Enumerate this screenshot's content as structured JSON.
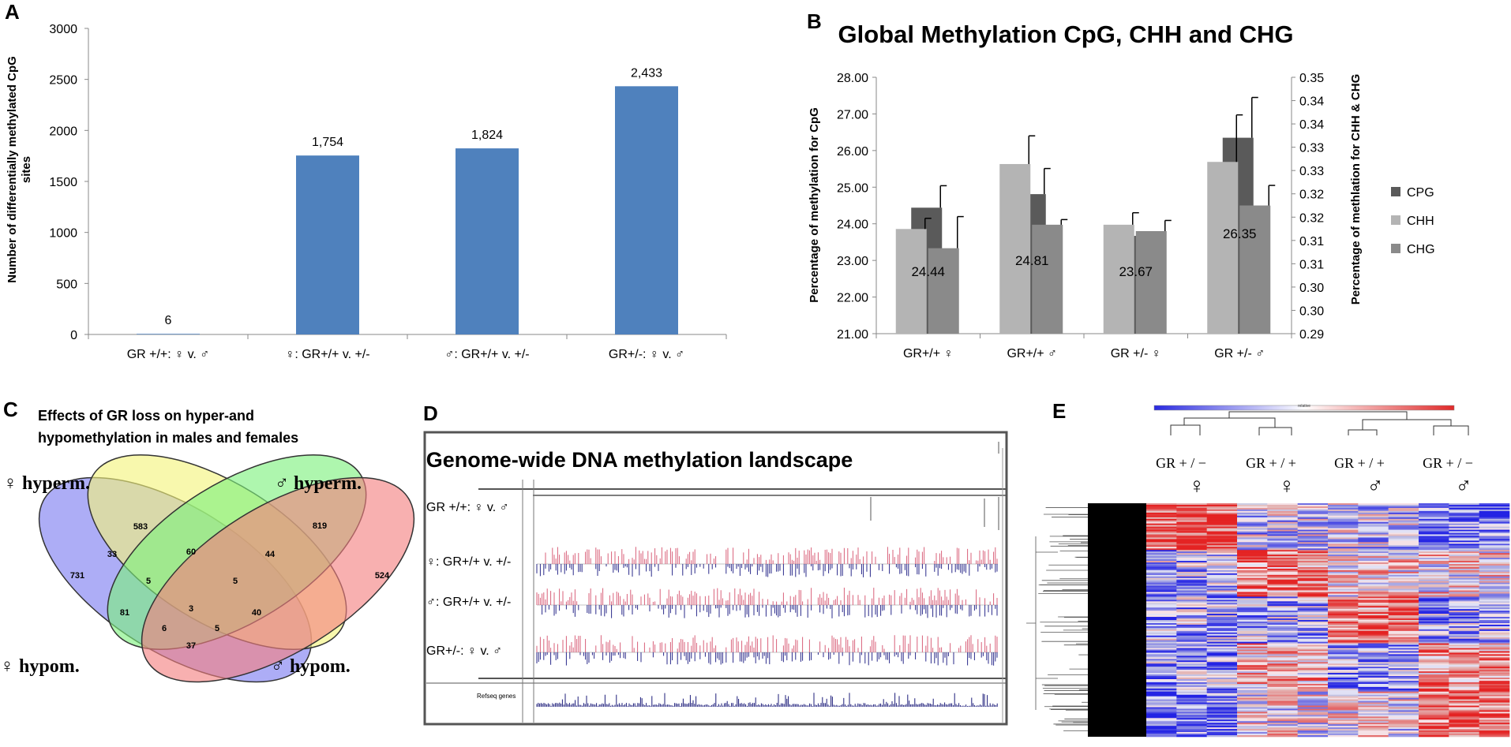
{
  "panel_letters": {
    "a": "A",
    "b": "B",
    "c": "C",
    "d": "D",
    "e": "E"
  },
  "colors": {
    "blue_bar": "#4f81bd",
    "cpg": "#5a5a5a",
    "chh": "#b4b4b4",
    "chg": "#8a8a8a",
    "venn1": "#7b7bf0",
    "venn2": "#f4f47a",
    "venn3": "#7cf07c",
    "venn4": "#f48080",
    "heat_red": "#e41a1c",
    "heat_blue": "#1a1ae4"
  },
  "chart_data": [
    {
      "type": "bar",
      "title": "",
      "xlabel": "",
      "ylabel": "Number of differentially methylated CpG sites",
      "ylabel_lines": [
        "Number of differentially methylated CpG",
        "sites"
      ],
      "categories": [
        "GR +/+: ♀ v. ♂",
        "♀:  GR+/+ v. +/-",
        "♂: GR+/+ v. +/-",
        "GR+/-: ♀ v. ♂"
      ],
      "values": [
        6,
        1754,
        1824,
        2433
      ],
      "value_labels": [
        "6",
        "1,754",
        "1,824",
        "2,433"
      ],
      "ylim": [
        0,
        3000
      ],
      "yticks": [
        "0",
        "500",
        "1000",
        "1500",
        "2000",
        "2500",
        "3000"
      ]
    },
    {
      "type": "bar",
      "title": "Global Methylation CpG, CHH and CHG",
      "ylabel": "Percentage of methylation for CpG",
      "y2label": "Percentage of methlation for CHH & CHG",
      "categories": [
        "GR+/+ ♀",
        "GR+/+ ♂",
        "GR +/- ♀",
        "GR +/- ♂"
      ],
      "series": [
        {
          "name": "CPG",
          "values": [
            24.44,
            24.81,
            23.67,
            26.35
          ],
          "errors": [
            0.6,
            0.7,
            0.0,
            1.1
          ],
          "axis": "left"
        },
        {
          "name": "CHH",
          "values": [
            0.3145,
            0.3297,
            0.3155,
            0.3302
          ],
          "errors": [
            0.0025,
            0.0066,
            0.0028,
            0.011
          ],
          "axis": "right"
        },
        {
          "name": "CHG",
          "values": [
            0.31,
            0.3155,
            0.314,
            0.32
          ],
          "errors": [
            0.0074,
            0.0012,
            0.0025,
            0.0047
          ],
          "axis": "right"
        }
      ],
      "data_labels": [
        "24.44",
        "24.81",
        "23.67",
        "26.35"
      ],
      "ylim": [
        21.0,
        28.0
      ],
      "yticks": [
        "21.00",
        "22.00",
        "23.00",
        "24.00",
        "25.00",
        "26.00",
        "27.00",
        "28.00"
      ],
      "y2lim": [
        0.29,
        0.35
      ],
      "y2ticks": [
        "0.29",
        "0.30",
        "0.30",
        "0.31",
        "0.31",
        "0.32",
        "0.32",
        "0.33",
        "0.33",
        "0.34",
        "0.34",
        "0.35"
      ],
      "legend_position": "right"
    }
  ],
  "panel_c": {
    "title_line1": "Effects of GR loss on hyper-and",
    "title_line2": "hypomethylation in males and females",
    "labels": {
      "f_hyper": "♀ hyperm.",
      "m_hyper": "♂ hyperm.",
      "f_hypo": "♀ hypom.",
      "m_hypo": "♂ hypom."
    },
    "counts": [
      "731",
      "583",
      "819",
      "524",
      "33",
      "60",
      "44",
      "5",
      "5",
      "81",
      "3",
      "40",
      "6",
      "5",
      "37"
    ]
  },
  "panel_d": {
    "title": "Genome-wide DNA methylation landscape",
    "tracks": [
      "GR +/+: ♀ v. ♂",
      "♀:  GR+/+ v. +/-",
      "♂: GR+/+ v. +/-",
      "GR+/-: ♀ v. ♂"
    ],
    "refseq": "Refseq genes"
  },
  "panel_e": {
    "scale_label": "relative",
    "groups": [
      {
        "line1": "GR  + / −",
        "symbol": "♀"
      },
      {
        "line1": "GR  + / +",
        "symbol": "♀"
      },
      {
        "line1": "GR  + / +",
        "symbol": "♂"
      },
      {
        "line1": "GR  + / −",
        "symbol": "♂"
      }
    ]
  }
}
